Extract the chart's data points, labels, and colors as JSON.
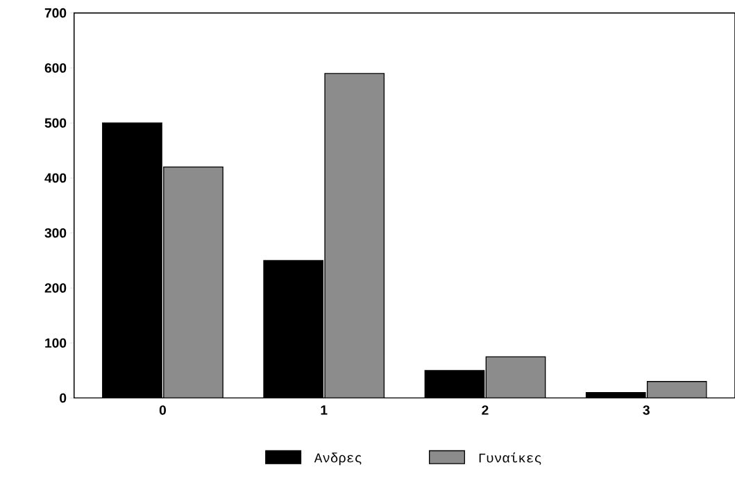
{
  "chart_data": {
    "type": "bar",
    "categories": [
      "0",
      "1",
      "2",
      "3"
    ],
    "series": [
      {
        "name": "Ανδρες",
        "color": "#000000",
        "values": [
          500,
          250,
          50,
          10
        ]
      },
      {
        "name": "Γυναίκες",
        "color": "#8c8c8c",
        "values": [
          420,
          590,
          75,
          30
        ]
      }
    ],
    "ylim": [
      0,
      700
    ],
    "yticks": [
      0,
      100,
      200,
      300,
      400,
      500,
      600,
      700
    ],
    "grid": false,
    "legend": "bottom"
  }
}
